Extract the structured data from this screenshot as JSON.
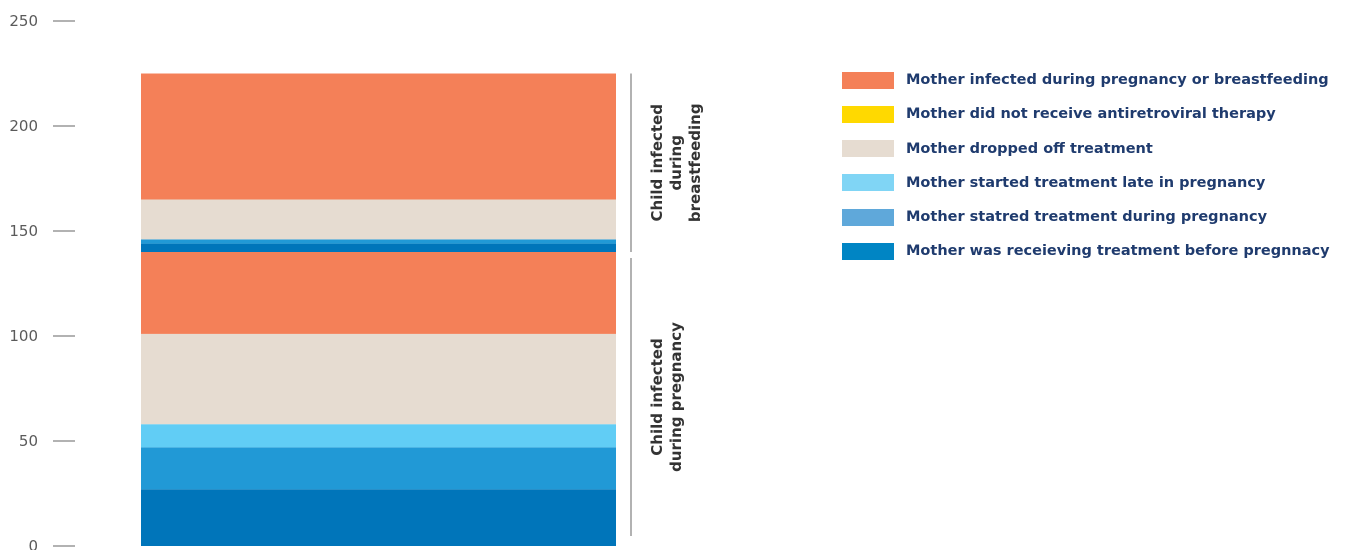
{
  "chart_data": {
    "type": "bar",
    "stacked": true,
    "ylim": [
      0,
      250
    ],
    "yticks": [
      0,
      50,
      100,
      150,
      200,
      250
    ],
    "segments": [
      {
        "series": "Mother was receieving treatment before pregnnacy",
        "group": "pregnancy",
        "start": 0,
        "value": 27
      },
      {
        "series": "Mother statred treatment during pregnancy",
        "group": "pregnancy",
        "start": 27,
        "value": 20
      },
      {
        "series": "Mother started treatment late in pregnancy",
        "group": "pregnancy",
        "start": 47,
        "value": 11
      },
      {
        "series": "Mother dropped off treatment",
        "group": "pregnancy",
        "start": 58,
        "value": 43
      },
      {
        "series": "Mother infected during pregnancy or breastfeeding",
        "group": "pregnancy",
        "start": 101,
        "value": 39
      },
      {
        "series": "Mother was receieving treatment before pregnnacy",
        "group": "breastfeeding",
        "start": 140,
        "value": 4
      },
      {
        "series": "Mother statred treatment during pregnancy",
        "group": "breastfeeding",
        "start": 144,
        "value": 2
      },
      {
        "series": "Mother dropped off treatment",
        "group": "breastfeeding",
        "start": 146,
        "value": 19
      },
      {
        "series": "Mother infected during pregnancy or breastfeeding",
        "group": "breastfeeding",
        "start": 165,
        "value": 60
      }
    ],
    "groups": [
      {
        "id": "pregnancy",
        "label_lines": [
          "Child infected",
          "during pregnancy"
        ],
        "range": [
          0,
          140
        ]
      },
      {
        "id": "breastfeeding",
        "label_lines": [
          "Child infected",
          "during",
          "breastfeeding"
        ],
        "range": [
          140,
          225
        ]
      }
    ],
    "legend": [
      {
        "label": "Mother infected during pregnancy or breastfeeding",
        "color": "#F48058"
      },
      {
        "label": "Mother did not receive antiretroviral therapy",
        "color": "#FFD900"
      },
      {
        "label": "Mother dropped off treatment",
        "color": "#E6DCD1"
      },
      {
        "label": "Mother started treatment late in pregnancy",
        "color": "#80D5F5"
      },
      {
        "label": "Mother statred treatment during pregnancy",
        "color": "#5FA8DA"
      },
      {
        "label": "Mother was receieving treatment before pregnnacy",
        "color": "#0085C4"
      }
    ],
    "bar_colors": {
      "Mother was receieving treatment before pregnnacy": "#0075BA",
      "Mother statred treatment during pregnancy": "#2199D6",
      "Mother started treatment late in pregnancy": "#61CDF5",
      "Mother dropped off treatment": "#E6DCD1",
      "Mother infected during pregnancy or breastfeeding": "#F48058",
      "Mother did not receive antiretroviral therapy": "#FFD900"
    },
    "legend_placement": "top-right",
    "grid": false
  }
}
